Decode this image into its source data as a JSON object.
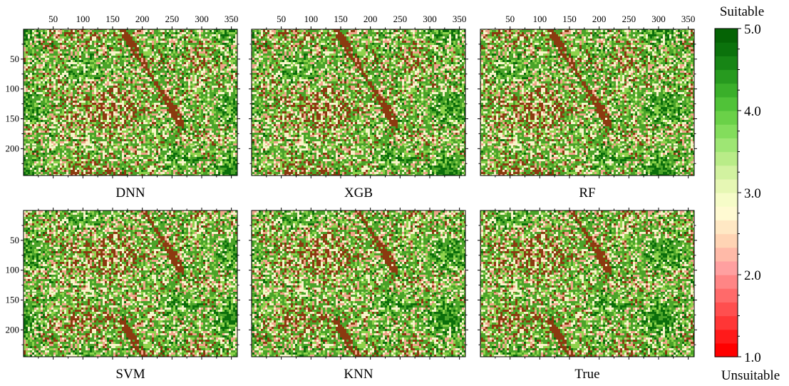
{
  "chart_data": [
    {
      "type": "heatmap",
      "panel_label": "DNN",
      "x_ticks": [
        50,
        100,
        150,
        200,
        250,
        300,
        350
      ],
      "y_ticks": [
        50,
        100,
        150,
        200
      ],
      "xlim": [
        0,
        360
      ],
      "ylim": [
        0,
        245
      ],
      "x_axis_position": "top",
      "y_axis_inverted": true
    },
    {
      "type": "heatmap",
      "panel_label": "XGB",
      "x_ticks": [
        50,
        100,
        150,
        200,
        250,
        300,
        350
      ],
      "xlim": [
        0,
        360
      ],
      "ylim": [
        0,
        245
      ],
      "x_axis_position": "top",
      "y_axis_inverted": true
    },
    {
      "type": "heatmap",
      "panel_label": "RF",
      "x_ticks": [
        50,
        100,
        150,
        200,
        250,
        300,
        350
      ],
      "xlim": [
        0,
        360
      ],
      "ylim": [
        0,
        245
      ],
      "x_axis_position": "top",
      "y_axis_inverted": true
    },
    {
      "type": "heatmap",
      "panel_label": "SVM",
      "y_ticks": [
        50,
        100,
        150,
        200
      ],
      "xlim": [
        0,
        360
      ],
      "ylim": [
        0,
        245
      ],
      "y_axis_inverted": true
    },
    {
      "type": "heatmap",
      "panel_label": "KNN",
      "xlim": [
        0,
        360
      ],
      "ylim": [
        0,
        245
      ],
      "y_axis_inverted": true
    },
    {
      "type": "heatmap",
      "panel_label": "True",
      "xlim": [
        0,
        360
      ],
      "ylim": [
        0,
        245
      ],
      "y_axis_inverted": true
    }
  ],
  "colorbar": {
    "top_label": "Suitable",
    "bottom_label": "Unsuitable",
    "min": 1.0,
    "max": 5.0,
    "tick_labels": [
      "5.0",
      "4.0",
      "3.0",
      "2.0",
      "1.0"
    ],
    "tick_values": [
      5.0,
      4.0,
      3.0,
      2.0,
      1.0
    ],
    "colors_low_to_high": [
      "#ff0000",
      "#ff1a1a",
      "#ff3636",
      "#ff4f4f",
      "#ff6a6a",
      "#ff8585",
      "#ffa0a0",
      "#ffbaa8",
      "#ffd4b4",
      "#ffe8c4",
      "#fffad2",
      "#f6fcc8",
      "#e6f7b4",
      "#d2f2a0",
      "#b9ec88",
      "#9ee674",
      "#83dd5c",
      "#6ad148",
      "#50c238",
      "#3aaf2a",
      "#279a1f",
      "#178515",
      "#0b720c",
      "#056305"
    ]
  },
  "map_colors": {
    "dark_green": "#0b6e0b",
    "medium_green": "#4aa329",
    "light_green": "#8ed24b",
    "cream": "#f7f4c8",
    "salmon": "#f0a48a",
    "brown": "#8b3a10"
  }
}
